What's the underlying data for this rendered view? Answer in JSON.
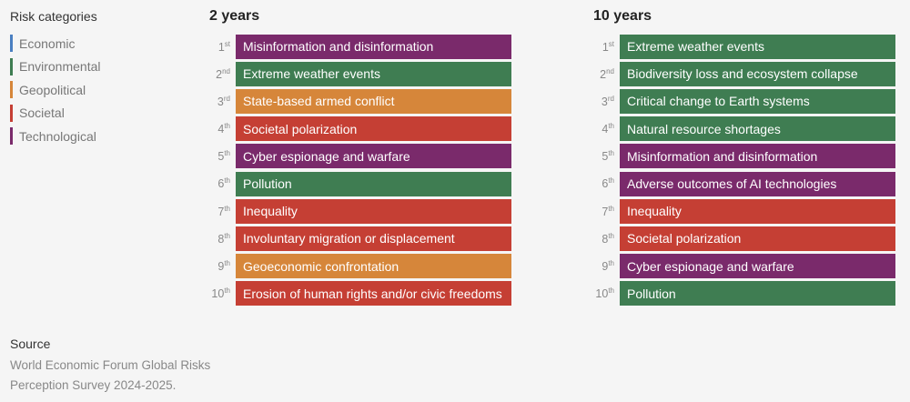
{
  "legend": {
    "title": "Risk categories",
    "items": [
      {
        "label": "Economic",
        "color": "#4a7fc1"
      },
      {
        "label": "Environmental",
        "color": "#3f7d52"
      },
      {
        "label": "Geopolitical",
        "color": "#d6863a"
      },
      {
        "label": "Societal",
        "color": "#c53f34"
      },
      {
        "label": "Technological",
        "color": "#7a2a6b"
      }
    ]
  },
  "chart_data": {
    "type": "table",
    "columns": [
      {
        "title": "2 years",
        "rows": [
          {
            "rank": "1",
            "suffix": "st",
            "label": "Misinformation and disinformation",
            "category": "Technological"
          },
          {
            "rank": "2",
            "suffix": "nd",
            "label": "Extreme weather events",
            "category": "Environmental"
          },
          {
            "rank": "3",
            "suffix": "rd",
            "label": "State-based armed conflict",
            "category": "Geopolitical"
          },
          {
            "rank": "4",
            "suffix": "th",
            "label": "Societal polarization",
            "category": "Societal"
          },
          {
            "rank": "5",
            "suffix": "th",
            "label": "Cyber espionage and warfare",
            "category": "Technological"
          },
          {
            "rank": "6",
            "suffix": "th",
            "label": "Pollution",
            "category": "Environmental"
          },
          {
            "rank": "7",
            "suffix": "th",
            "label": "Inequality",
            "category": "Societal"
          },
          {
            "rank": "8",
            "suffix": "th",
            "label": "Involuntary migration or displacement",
            "category": "Societal"
          },
          {
            "rank": "9",
            "suffix": "th",
            "label": "Geoeconomic confrontation",
            "category": "Geopolitical"
          },
          {
            "rank": "10",
            "suffix": "th",
            "label": "Erosion of human rights and/or civic freedoms",
            "category": "Societal"
          }
        ]
      },
      {
        "title": "10 years",
        "rows": [
          {
            "rank": "1",
            "suffix": "st",
            "label": "Extreme weather events",
            "category": "Environmental"
          },
          {
            "rank": "2",
            "suffix": "nd",
            "label": "Biodiversity loss and ecosystem collapse",
            "category": "Environmental"
          },
          {
            "rank": "3",
            "suffix": "rd",
            "label": "Critical change to Earth systems",
            "category": "Environmental"
          },
          {
            "rank": "4",
            "suffix": "th",
            "label": "Natural resource shortages",
            "category": "Environmental"
          },
          {
            "rank": "5",
            "suffix": "th",
            "label": "Misinformation and disinformation",
            "category": "Technological"
          },
          {
            "rank": "6",
            "suffix": "th",
            "label": "Adverse outcomes of AI technologies",
            "category": "Technological"
          },
          {
            "rank": "7",
            "suffix": "th",
            "label": "Inequality",
            "category": "Societal"
          },
          {
            "rank": "8",
            "suffix": "th",
            "label": "Societal polarization",
            "category": "Societal"
          },
          {
            "rank": "9",
            "suffix": "th",
            "label": "Cyber espionage and warfare",
            "category": "Technological"
          },
          {
            "rank": "10",
            "suffix": "th",
            "label": "Pollution",
            "category": "Environmental"
          }
        ]
      }
    ]
  },
  "source": {
    "title": "Source",
    "text": "World Economic Forum Global Risks Perception Survey 2024-2025."
  }
}
